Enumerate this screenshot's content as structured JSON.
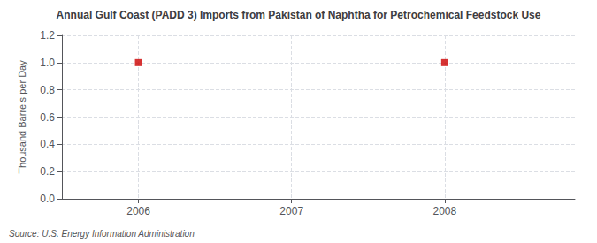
{
  "chart_data": {
    "type": "scatter",
    "title": "Annual Gulf Coast (PADD 3) Imports from Pakistan of Naphtha for Petrochemical Feedstock Use",
    "ylabel": "Thousand Barrels per Day",
    "x": [
      2006,
      2008
    ],
    "values": [
      1.0,
      1.0
    ],
    "color": "#cc0000",
    "marker": "square",
    "xlim": [
      2005.5,
      2008.85
    ],
    "ylim": [
      0.0,
      1.2
    ],
    "xticks": [
      2006,
      2007,
      2008
    ],
    "yticks": [
      {
        "value": 0.0,
        "label": "0.0"
      },
      {
        "value": 0.2,
        "label": "0.2"
      },
      {
        "value": 0.4,
        "label": "0.4"
      },
      {
        "value": 0.6,
        "label": "0.6"
      },
      {
        "value": 0.8,
        "label": "0.8"
      },
      {
        "value": 1.0,
        "label": "1.0"
      },
      {
        "value": 1.2,
        "label": "1.2"
      }
    ],
    "grid": true,
    "annotations": [
      "Source: U.S. Energy Information Administration"
    ]
  }
}
